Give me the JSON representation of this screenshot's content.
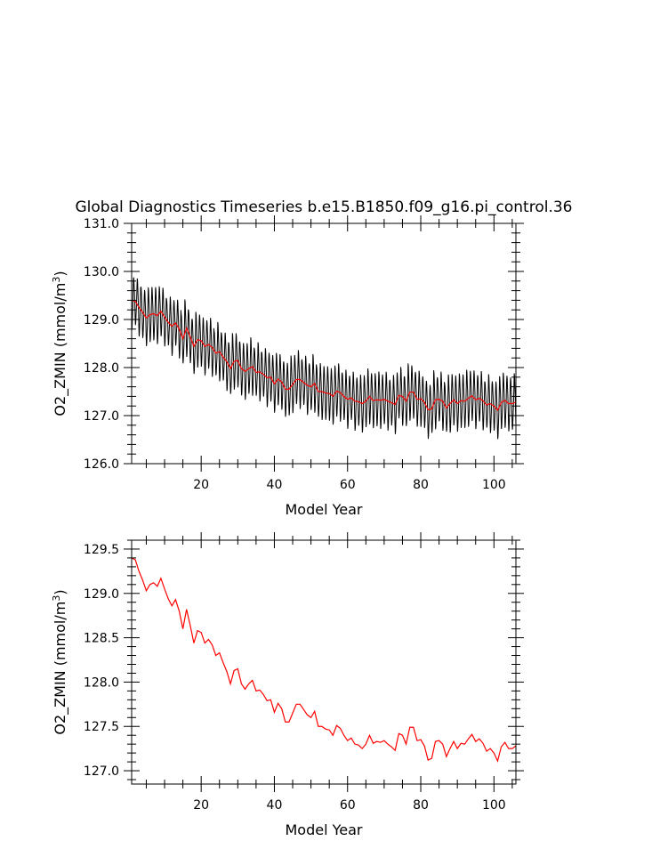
{
  "figure_title": "Global Diagnostics Timeseries b.e15.B1850.f09_g16.pi_control.36",
  "colors": {
    "monthly": "#000000",
    "annual": "#ff0000",
    "axis": "#000000"
  },
  "chart_data": [
    {
      "type": "line",
      "title": "Global Diagnostics Timeseries b.e15.B1850.f09_g16.pi_control.36",
      "xlabel": "Model Year",
      "ylabel_main": "O2_ZMIN (mmol/m",
      "ylabel_sup": "3",
      "ylabel_end": ")",
      "xlim": [
        1,
        106
      ],
      "ylim": [
        126.0,
        131.0
      ],
      "xticks": [
        20,
        40,
        60,
        80,
        100
      ],
      "xtick_labels": [
        "20",
        "40",
        "60",
        "80",
        "100"
      ],
      "yticks": [
        126.0,
        127.0,
        128.0,
        129.0,
        130.0,
        131.0
      ],
      "ytick_labels": [
        "126.0",
        "127.0",
        "128.0",
        "129.0",
        "130.0",
        "131.0"
      ],
      "grid": false,
      "series": [
        {
          "role": "monthly",
          "color": "#000000",
          "seasonal_amplitude": 0.6,
          "years_source": "annual_mean"
        },
        {
          "role": "annual_mean",
          "color": "#ff0000"
        }
      ]
    },
    {
      "type": "line",
      "xlabel": "Model Year",
      "ylabel_main": "O2_ZMIN (mmol/m",
      "ylabel_sup": "3",
      "ylabel_end": ")",
      "xlim": [
        1,
        106
      ],
      "ylim": [
        126.85,
        129.6
      ],
      "xticks": [
        20,
        40,
        60,
        80,
        100
      ],
      "xtick_labels": [
        "20",
        "40",
        "60",
        "80",
        "100"
      ],
      "yticks": [
        127.0,
        127.5,
        128.0,
        128.5,
        129.0,
        129.5
      ],
      "ytick_labels": [
        "127.0",
        "127.5",
        "128.0",
        "128.5",
        "129.0",
        "129.5"
      ],
      "grid": false,
      "series": [
        {
          "role": "annual_mean",
          "color": "#ff0000"
        }
      ]
    }
  ],
  "annual_mean": {
    "x": [
      1,
      2,
      3,
      4,
      5,
      6,
      7,
      8,
      9,
      10,
      11,
      12,
      13,
      14,
      15,
      16,
      17,
      18,
      19,
      20,
      21,
      22,
      23,
      24,
      25,
      26,
      27,
      28,
      29,
      30,
      31,
      32,
      33,
      34,
      35,
      36,
      37,
      38,
      39,
      40,
      41,
      42,
      43,
      44,
      45,
      46,
      47,
      48,
      49,
      50,
      51,
      52,
      53,
      54,
      55,
      56,
      57,
      58,
      59,
      60,
      61,
      62,
      63,
      64,
      65,
      66,
      67,
      68,
      69,
      70,
      71,
      72,
      73,
      74,
      75,
      76,
      77,
      78,
      79,
      80,
      81,
      82,
      83,
      84,
      85,
      86,
      87,
      88,
      89,
      90,
      91,
      92,
      93,
      94,
      95,
      96,
      97,
      98,
      99,
      100,
      101,
      102,
      103,
      104,
      105,
      106
    ],
    "y": [
      129.4,
      129.38,
      129.25,
      129.15,
      129.03,
      129.1,
      129.12,
      129.08,
      129.17,
      129.05,
      128.94,
      128.86,
      128.93,
      128.8,
      128.6,
      128.82,
      128.64,
      128.44,
      128.58,
      128.56,
      128.44,
      128.48,
      128.42,
      128.3,
      128.33,
      128.22,
      128.12,
      127.98,
      128.13,
      128.15,
      127.98,
      127.92,
      127.98,
      128.02,
      127.9,
      127.91,
      127.86,
      127.79,
      127.8,
      127.66,
      127.76,
      127.7,
      127.55,
      127.55,
      127.65,
      127.75,
      127.75,
      127.69,
      127.63,
      127.6,
      127.67,
      127.5,
      127.5,
      127.47,
      127.46,
      127.4,
      127.51,
      127.48,
      127.4,
      127.34,
      127.37,
      127.3,
      127.29,
      127.25,
      127.3,
      127.4,
      127.31,
      127.33,
      127.32,
      127.34,
      127.3,
      127.27,
      127.23,
      127.42,
      127.4,
      127.3,
      127.49,
      127.49,
      127.34,
      127.35,
      127.28,
      127.12,
      127.14,
      127.33,
      127.34,
      127.3,
      127.16,
      127.25,
      127.33,
      127.25,
      127.31,
      127.3,
      127.36,
      127.41,
      127.33,
      127.36,
      127.31,
      127.22,
      127.25,
      127.2,
      127.11,
      127.27,
      127.32,
      127.25,
      127.25,
      127.28
    ]
  }
}
